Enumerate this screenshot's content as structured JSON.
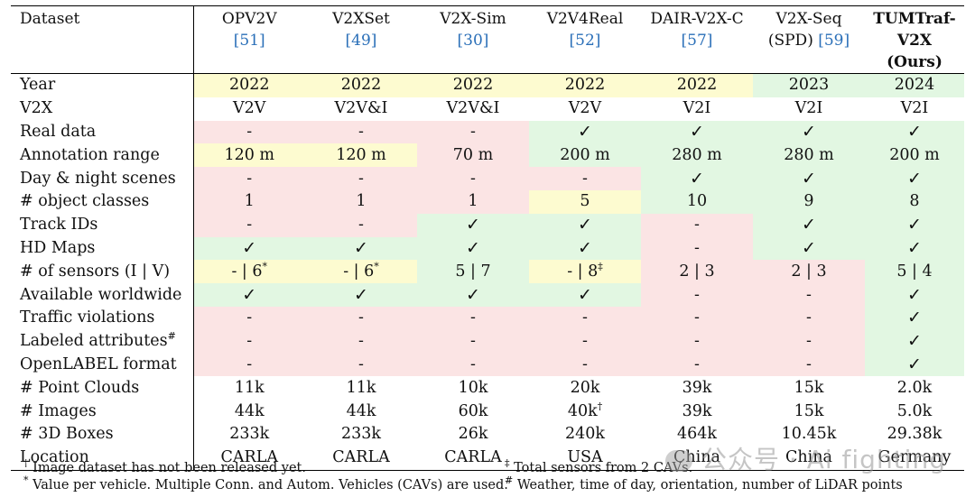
{
  "columns": [
    {
      "name": "Dataset",
      "ref": "",
      "bold": false
    },
    {
      "name": "OPV2V",
      "ref": "[51]",
      "bold": false
    },
    {
      "name": "V2XSet",
      "ref": "[49]",
      "bold": false
    },
    {
      "name": "V2X-Sim",
      "ref": "[30]",
      "bold": false
    },
    {
      "name": "V2V4Real",
      "ref": "[52]",
      "bold": false
    },
    {
      "name": "DAIR-V2X-C",
      "ref": "[57]",
      "bold": false
    },
    {
      "name": "V2X-Seq (SPD)",
      "ref": "[59]",
      "bold": false
    },
    {
      "name": "TUMTraf-V2X (Ours)",
      "ref": "",
      "bold": true
    }
  ],
  "rows": [
    {
      "label": "Year",
      "cells": [
        [
          "2022",
          "y"
        ],
        [
          "2022",
          "y"
        ],
        [
          "2022",
          "y"
        ],
        [
          "2022",
          "y"
        ],
        [
          "2022",
          "y"
        ],
        [
          "2023",
          "g"
        ],
        [
          "2024",
          "g"
        ]
      ]
    },
    {
      "label": "V2X",
      "cells": [
        [
          "V2V",
          ""
        ],
        [
          "V2V&I",
          ""
        ],
        [
          "V2V&I",
          ""
        ],
        [
          "V2V",
          ""
        ],
        [
          "V2I",
          ""
        ],
        [
          "V2I",
          ""
        ],
        [
          "V2I",
          ""
        ]
      ]
    },
    {
      "label": "Real data",
      "cells": [
        [
          "-",
          "r"
        ],
        [
          "-",
          "r"
        ],
        [
          "-",
          "r"
        ],
        [
          "✓",
          "g"
        ],
        [
          "✓",
          "g"
        ],
        [
          "✓",
          "g"
        ],
        [
          "✓",
          "g"
        ]
      ]
    },
    {
      "label": "Annotation range",
      "cells": [
        [
          "120 m",
          "y"
        ],
        [
          "120 m",
          "y"
        ],
        [
          "70 m",
          "r"
        ],
        [
          "200 m",
          "g"
        ],
        [
          "280 m",
          "g"
        ],
        [
          "280 m",
          "g"
        ],
        [
          "200 m",
          "g"
        ]
      ]
    },
    {
      "label": "Day & night scenes",
      "cells": [
        [
          "-",
          "r"
        ],
        [
          "-",
          "r"
        ],
        [
          "-",
          "r"
        ],
        [
          "-",
          "r"
        ],
        [
          "✓",
          "g"
        ],
        [
          "✓",
          "g"
        ],
        [
          "✓",
          "g"
        ]
      ]
    },
    {
      "label": "# object classes",
      "cells": [
        [
          "1",
          "r"
        ],
        [
          "1",
          "r"
        ],
        [
          "1",
          "r"
        ],
        [
          "5",
          "y"
        ],
        [
          "10",
          "g"
        ],
        [
          "9",
          "g"
        ],
        [
          "8",
          "g"
        ]
      ]
    },
    {
      "label": "Track IDs",
      "cells": [
        [
          "-",
          "r"
        ],
        [
          "-",
          "r"
        ],
        [
          "✓",
          "g"
        ],
        [
          "✓",
          "g"
        ],
        [
          "-",
          "r"
        ],
        [
          "✓",
          "g"
        ],
        [
          "✓",
          "g"
        ]
      ]
    },
    {
      "label": "HD Maps",
      "cells": [
        [
          "✓",
          "g"
        ],
        [
          "✓",
          "g"
        ],
        [
          "✓",
          "g"
        ],
        [
          "✓",
          "g"
        ],
        [
          "-",
          "r"
        ],
        [
          "✓",
          "g"
        ],
        [
          "✓",
          "g"
        ]
      ]
    },
    {
      "label": "# of sensors (I | V)",
      "cells": [
        [
          "- | 6",
          "y",
          "*"
        ],
        [
          "- | 6",
          "y",
          "*"
        ],
        [
          "5 | 7",
          "g"
        ],
        [
          "- | 8",
          "y",
          "‡"
        ],
        [
          "2 | 3",
          "r"
        ],
        [
          "2 | 3",
          "r"
        ],
        [
          "5 | 4",
          "g"
        ]
      ]
    },
    {
      "label": "Available worldwide",
      "cells": [
        [
          "✓",
          "g"
        ],
        [
          "✓",
          "g"
        ],
        [
          "✓",
          "g"
        ],
        [
          "✓",
          "g"
        ],
        [
          "-",
          "r"
        ],
        [
          "-",
          "r"
        ],
        [
          "✓",
          "g"
        ]
      ]
    },
    {
      "label": "Traffic violations",
      "cells": [
        [
          "-",
          "r"
        ],
        [
          "-",
          "r"
        ],
        [
          "-",
          "r"
        ],
        [
          "-",
          "r"
        ],
        [
          "-",
          "r"
        ],
        [
          "-",
          "r"
        ],
        [
          "✓",
          "g"
        ]
      ]
    },
    {
      "label": "Labeled attributes",
      "sup": "#",
      "cells": [
        [
          "-",
          "r"
        ],
        [
          "-",
          "r"
        ],
        [
          "-",
          "r"
        ],
        [
          "-",
          "r"
        ],
        [
          "-",
          "r"
        ],
        [
          "-",
          "r"
        ],
        [
          "✓",
          "g"
        ]
      ]
    },
    {
      "label": "OpenLABEL format",
      "cells": [
        [
          "-",
          "r"
        ],
        [
          "-",
          "r"
        ],
        [
          "-",
          "r"
        ],
        [
          "-",
          "r"
        ],
        [
          "-",
          "r"
        ],
        [
          "-",
          "r"
        ],
        [
          "✓",
          "g"
        ]
      ]
    },
    {
      "label": "# Point Clouds",
      "cells": [
        [
          "11k",
          ""
        ],
        [
          "11k",
          ""
        ],
        [
          "10k",
          ""
        ],
        [
          "20k",
          ""
        ],
        [
          "39k",
          ""
        ],
        [
          "15k",
          ""
        ],
        [
          "2.0k",
          ""
        ]
      ]
    },
    {
      "label": "# Images",
      "cells": [
        [
          "44k",
          ""
        ],
        [
          "44k",
          ""
        ],
        [
          "60k",
          ""
        ],
        [
          "40k",
          "",
          "†"
        ],
        [
          "39k",
          ""
        ],
        [
          "15k",
          ""
        ],
        [
          "5.0k",
          ""
        ]
      ]
    },
    {
      "label": "# 3D Boxes",
      "cells": [
        [
          "233k",
          ""
        ],
        [
          "233k",
          ""
        ],
        [
          "26k",
          ""
        ],
        [
          "240k",
          ""
        ],
        [
          "464k",
          ""
        ],
        [
          "10.45k",
          ""
        ],
        [
          "29.38k",
          ""
        ]
      ]
    },
    {
      "label": "Location",
      "cells": [
        [
          "CARLA",
          ""
        ],
        [
          "CARLA",
          ""
        ],
        [
          "CARLA",
          ""
        ],
        [
          "USA",
          ""
        ],
        [
          "China",
          ""
        ],
        [
          "China",
          ""
        ],
        [
          "Germany",
          ""
        ]
      ]
    }
  ],
  "footnotes": {
    "dagger_mark": "†",
    "dagger": "Image dataset has not been released yet.",
    "star_mark": "*",
    "star": "Value per vehicle. Multiple Conn. and Autom. Vehicles (CAVs) are used.",
    "ddagger_mark": "‡",
    "ddagger": "Total sensors from 2 CAVs.",
    "hash_mark": "#",
    "hash": "Weather, time of day, orientation, number of LiDAR points"
  },
  "watermark": "公众号 · Ai fighting",
  "colors": {
    "yellow": "#fdfbd0",
    "red": "#fbe4e4",
    "green": "#e2f7e2",
    "ref": "#2a6fb8"
  }
}
